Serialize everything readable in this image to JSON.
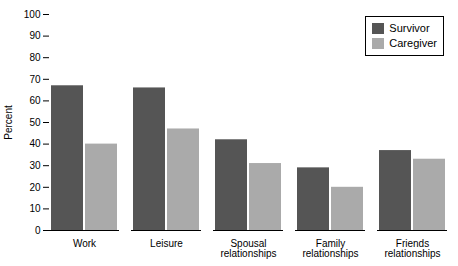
{
  "chart_data": {
    "type": "bar",
    "categories": [
      "Work",
      "Leisure",
      "Spousal\nrelationships",
      "Family\nrelationships",
      "Friends\nrelationships"
    ],
    "series": [
      {
        "name": "Survivor",
        "color": "#555555",
        "values": [
          67,
          66,
          42,
          29,
          37
        ]
      },
      {
        "name": "Caregiver",
        "color": "#aaaaaa",
        "values": [
          40,
          47,
          31,
          20,
          33
        ]
      }
    ],
    "ylabel": "Percent",
    "ylim": [
      0,
      100
    ],
    "yticks": [
      0,
      10,
      20,
      30,
      40,
      50,
      60,
      70,
      80,
      90,
      100
    ],
    "legend": "upper right",
    "grid": false
  }
}
